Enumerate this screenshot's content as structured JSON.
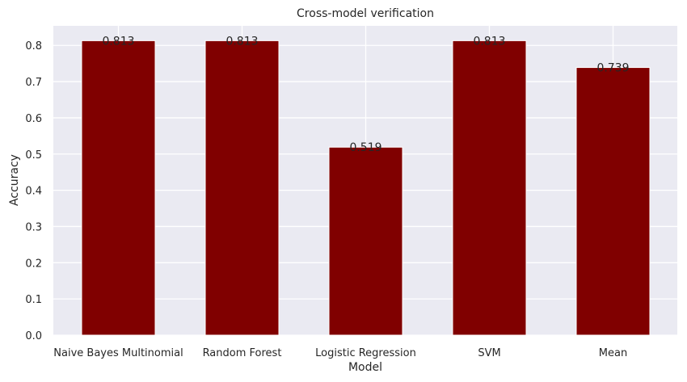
{
  "chart_data": {
    "type": "bar",
    "title": "Cross-model verification",
    "xlabel": "Model",
    "ylabel": "Accuracy",
    "categories": [
      "Naive Bayes Multinomial",
      "Random Forest",
      "Logistic Regression",
      "SVM",
      "Mean"
    ],
    "values": [
      0.813,
      0.813,
      0.519,
      0.813,
      0.739
    ],
    "data_labels": [
      "0.813",
      "0.813",
      "0.519",
      "0.813",
      "0.739"
    ],
    "yticks": [
      "0.0",
      "0.1",
      "0.2",
      "0.3",
      "0.4",
      "0.5",
      "0.6",
      "0.7",
      "0.8"
    ],
    "ylim": [
      0,
      0.854
    ],
    "grid": true,
    "colors": {
      "bar": "#800000",
      "plot_background": "#eaeaf2",
      "grid": "#ffffff"
    }
  }
}
